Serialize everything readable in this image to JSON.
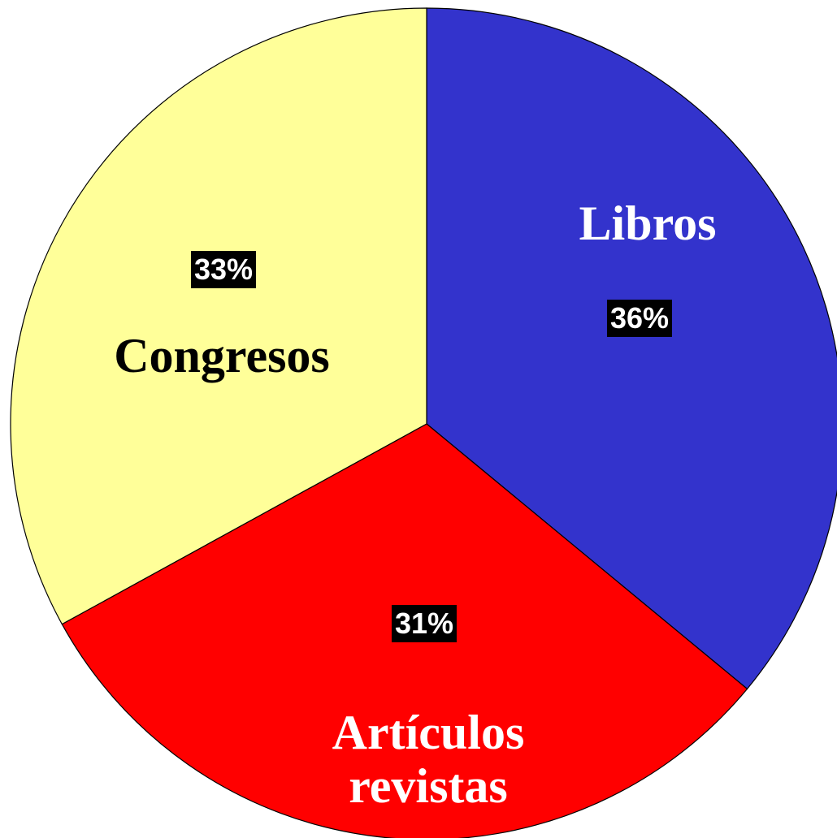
{
  "chart_data": {
    "type": "pie",
    "categories": [
      "Libros",
      "Artículos revistas",
      "Congresos"
    ],
    "values": [
      36,
      31,
      33
    ],
    "value_labels": [
      "36%",
      "31%",
      "33%"
    ],
    "colors": [
      "#3333cc",
      "#ff0000",
      "#ffff99"
    ]
  }
}
